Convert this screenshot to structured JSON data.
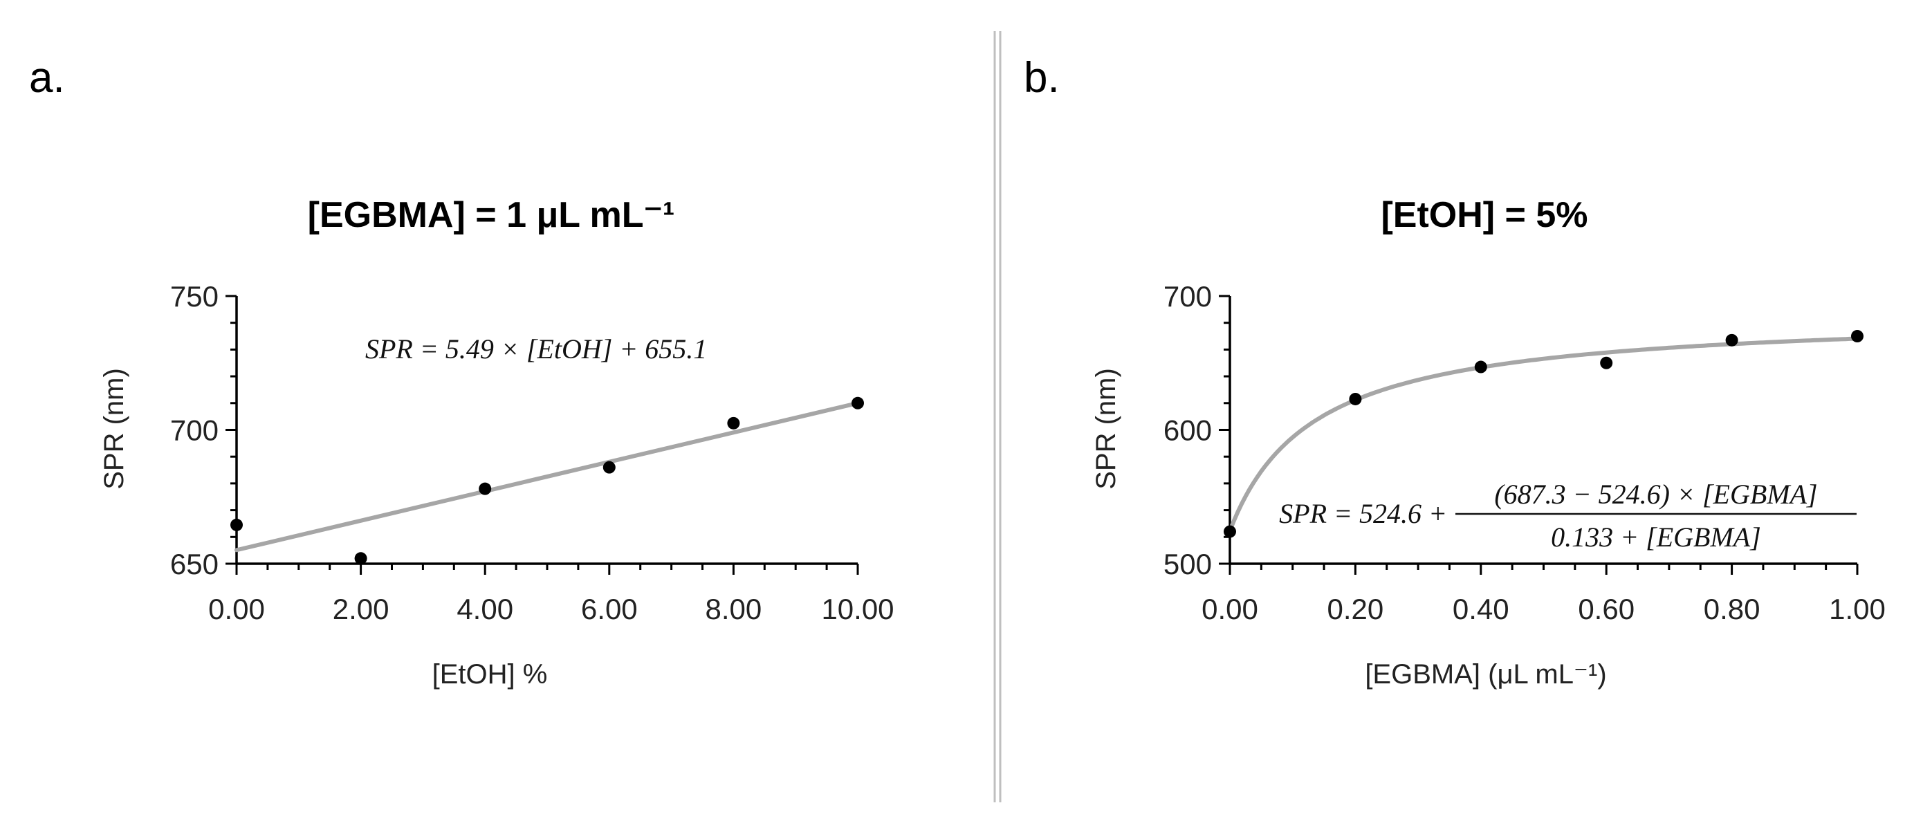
{
  "panels": [
    {
      "panel_label": "a.",
      "equation": "SPR = 5.49 × [EtOH] + 655.1"
    },
    {
      "panel_label": "b.",
      "equation": {
        "lhs": "SPR = 524.6 +",
        "numerator": "(687.3 − 524.6) × [EGBMA]",
        "denominator": "0.133 + [EGBMA]"
      }
    }
  ],
  "chart_data": [
    {
      "type": "scatter",
      "title": "[EGBMA] = 1 μL mL⁻¹",
      "xlabel": "[EtOH] %",
      "ylabel": "SPR (nm)",
      "xlim": [
        0,
        10
      ],
      "ylim": [
        650,
        750
      ],
      "x_ticks": [
        "0.00",
        "2.00",
        "4.00",
        "6.00",
        "8.00",
        "10.00"
      ],
      "y_ticks": [
        "650",
        "700",
        "750"
      ],
      "series": [
        {
          "name": "SPR",
          "x": [
            0,
            2,
            4,
            6,
            8,
            10
          ],
          "y": [
            664.5,
            652,
            678,
            686,
            702.5,
            710
          ]
        }
      ],
      "fit": {
        "type": "linear",
        "slope": 5.49,
        "intercept": 655.1
      },
      "colors": {
        "points": "#000000",
        "fit": "#a6a6a6"
      }
    },
    {
      "type": "scatter",
      "title": "[EtOH] = 5%",
      "xlabel": "[EGBMA] (μL mL⁻¹)",
      "ylabel": "SPR (nm)",
      "xlim": [
        0,
        1
      ],
      "ylim": [
        500,
        700
      ],
      "x_ticks": [
        "0.00",
        "0.20",
        "0.40",
        "0.60",
        "0.80",
        "1.00"
      ],
      "y_ticks": [
        "500",
        "600",
        "700"
      ],
      "series": [
        {
          "name": "SPR",
          "x": [
            0,
            0.2,
            0.4,
            0.6,
            0.8,
            1.0
          ],
          "y": [
            524,
            623,
            647,
            650,
            667,
            670
          ]
        }
      ],
      "fit": {
        "type": "hyperbolic",
        "base": 524.6,
        "max": 687.3,
        "k": 0.133
      },
      "colors": {
        "points": "#000000",
        "fit": "#a6a6a6"
      }
    }
  ]
}
